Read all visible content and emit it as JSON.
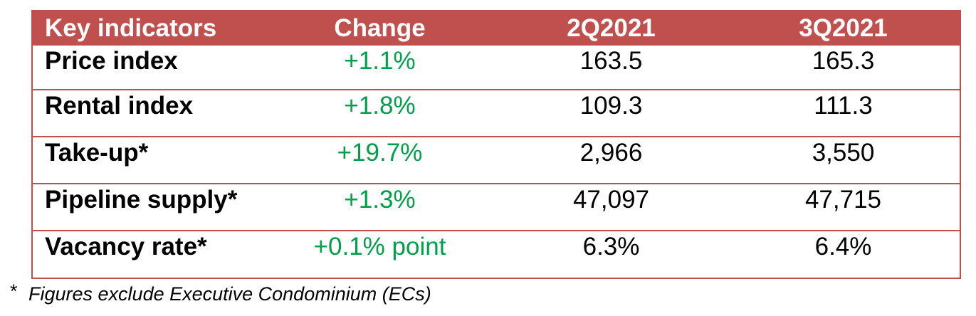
{
  "table": {
    "headers": {
      "indicator": "Key indicators",
      "change": "Change",
      "period1": "2Q2021",
      "period2": "3Q2021"
    },
    "rows": [
      {
        "indicator": "Price index",
        "change": "+1.1%",
        "period1": "163.5",
        "period2": "165.3"
      },
      {
        "indicator": "Rental index",
        "change": "+1.8%",
        "period1": "109.3",
        "period2": "111.3"
      },
      {
        "indicator": "Take-up*",
        "change": "+19.7%",
        "period1": "2,966",
        "period2": "3,550"
      },
      {
        "indicator": "Pipeline supply*",
        "change": "+1.3%",
        "period1": "47,097",
        "period2": "47,715"
      },
      {
        "indicator": "Vacancy rate*",
        "change": "+0.1% point",
        "period1": "6.3%",
        "period2": "6.4%"
      }
    ]
  },
  "footnote": {
    "marker": "*",
    "text": "Figures exclude Executive Condominium (ECs)"
  },
  "colors": {
    "header_background": "#c0504d",
    "header_text": "#ffffff",
    "change_text": "#00a04a",
    "border": "#c0504d"
  }
}
